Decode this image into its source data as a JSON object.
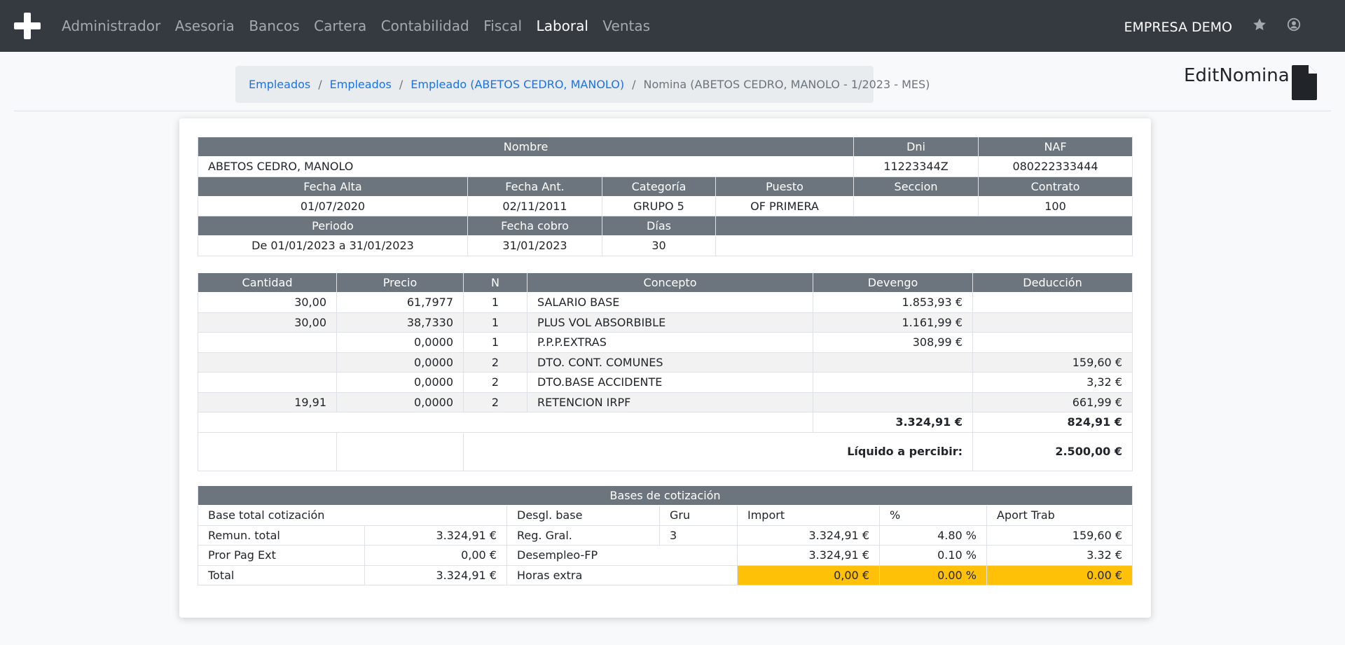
{
  "nav": {
    "items": [
      "Administrador",
      "Asesoria",
      "Bancos",
      "Cartera",
      "Contabilidad",
      "Fiscal",
      "Laboral",
      "Ventas"
    ],
    "active": "Laboral",
    "company": "EMPRESA DEMO"
  },
  "breadcrumb": {
    "items": [
      "Empleados",
      "Empleados",
      "Empleado (ABETOS CEDRO, MANOLO)"
    ],
    "current": "Nomina (ABETOS CEDRO, MANOLO - 1/2023 - MES)",
    "separator": "/"
  },
  "page": {
    "title": "EditNomina"
  },
  "employee": {
    "headers1": [
      "Nombre",
      "Dni",
      "NAF"
    ],
    "row1": [
      "ABETOS CEDRO, MANOLO",
      "11223344Z",
      "080222333444"
    ],
    "headers2": [
      "Fecha Alta",
      "Fecha Ant.",
      "Categoría",
      "Puesto",
      "Seccion",
      "Contrato"
    ],
    "row2": [
      "01/07/2020",
      "02/11/2011",
      "GRUPO 5",
      "OF PRIMERA",
      "",
      "100"
    ],
    "headers3": [
      "Periodo",
      "Fecha cobro",
      "Días"
    ],
    "row3": [
      "De 01/01/2023 a 31/01/2023",
      "31/01/2023",
      "30"
    ]
  },
  "lines": {
    "headers": [
      "Cantidad",
      "Precio",
      "N",
      "Concepto",
      "Devengo",
      "Deducción"
    ],
    "rows": [
      [
        "30,00",
        "61,7977",
        "1",
        "SALARIO BASE",
        "1.853,93 €",
        ""
      ],
      [
        "30,00",
        "38,7330",
        "1",
        "PLUS VOL ABSORBIBLE",
        "1.161,99 €",
        ""
      ],
      [
        "",
        "0,0000",
        "1",
        "P.P.P.EXTRAS",
        "308,99 €",
        ""
      ],
      [
        "",
        "0,0000",
        "2",
        "DTO. CONT. COMUNES",
        "",
        "159,60 €"
      ],
      [
        "",
        "0,0000",
        "2",
        "DTO.BASE ACCIDENTE",
        "",
        "3,32 €"
      ],
      [
        "19,91",
        "0,0000",
        "2",
        "RETENCION IRPF",
        "",
        "661,99 €"
      ]
    ],
    "total_devengo": "3.324,91 €",
    "total_deduccion": "824,91 €",
    "liquido_label": "Líquido a percibir:",
    "liquido_value": "2.500,00 €"
  },
  "bases": {
    "title": "Bases de cotización",
    "header": [
      "Base total cotización",
      "Desgl. base",
      "Gru",
      "Import",
      "%",
      "Aport Trab"
    ],
    "rows": [
      [
        "Remun. total",
        "3.324,91 €",
        "Reg. Gral.",
        "3",
        "3.324,91 €",
        "4.80 %",
        "159,60 €"
      ],
      [
        "Pror Pag Ext",
        "0,00 €",
        "Desempleo-FP",
        "",
        "3.324,91 €",
        "0.10 %",
        "3.32 €"
      ],
      [
        "Total",
        "3.324,91 €",
        "Horas extra",
        "",
        "0,00 €",
        "0.00 %",
        "0.00 €"
      ]
    ]
  },
  "colors": {
    "navbar": "#343a40",
    "header": "#6c757d",
    "link": "#1a73e8",
    "highlight": "#ffc107"
  },
  "icons": {
    "brand": "plus-icon",
    "star": "star-icon",
    "user": "user-circle-icon",
    "document": "file-icon"
  }
}
